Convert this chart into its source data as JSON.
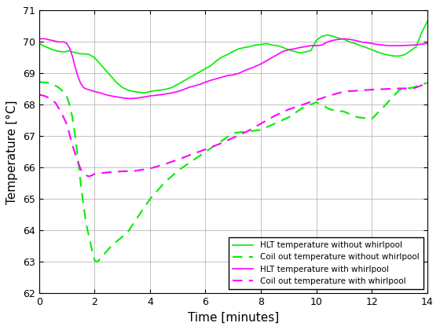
{
  "title": "",
  "xlabel": "Time [minutes]",
  "ylabel": "Temperature [°C]",
  "xlim": [
    0,
    14
  ],
  "ylim": [
    62,
    71
  ],
  "yticks": [
    62,
    63,
    64,
    65,
    66,
    67,
    68,
    69,
    70,
    71
  ],
  "xticks": [
    0,
    2,
    4,
    6,
    8,
    10,
    12,
    14
  ],
  "legend": [
    "HLT temperature without whirlpool",
    "Coil out temperature without whirlpool",
    "HLT temperature with whirlpool",
    "Coil out temperature with whirlpool"
  ],
  "colors": {
    "green": "#00ee00",
    "magenta": "#ff00ff"
  },
  "background": "#ffffff",
  "hlt_no_whirl_x": [
    0,
    0.15,
    0.3,
    0.5,
    0.7,
    0.9,
    1.0,
    1.1,
    1.2,
    1.35,
    1.5,
    1.65,
    1.8,
    2.0,
    2.2,
    2.4,
    2.6,
    2.8,
    3.0,
    3.2,
    3.4,
    3.6,
    3.8,
    4.0,
    4.2,
    4.4,
    4.6,
    4.8,
    5.0,
    5.2,
    5.4,
    5.6,
    5.8,
    6.0,
    6.2,
    6.4,
    6.6,
    6.8,
    7.0,
    7.2,
    7.4,
    7.6,
    7.8,
    8.0,
    8.2,
    8.4,
    8.6,
    8.8,
    9.0,
    9.2,
    9.4,
    9.6,
    9.8,
    10.0,
    10.2,
    10.4,
    10.6,
    10.8,
    11.0,
    11.2,
    11.4,
    11.6,
    11.8,
    12.0,
    12.2,
    12.4,
    12.6,
    12.8,
    13.0,
    13.2,
    13.4,
    13.6,
    13.8,
    14.0
  ],
  "hlt_no_whirl_y": [
    69.95,
    69.88,
    69.82,
    69.75,
    69.7,
    69.68,
    69.7,
    69.72,
    69.68,
    69.65,
    69.62,
    69.62,
    69.6,
    69.5,
    69.3,
    69.1,
    68.9,
    68.7,
    68.55,
    68.47,
    68.42,
    68.4,
    68.38,
    68.42,
    68.45,
    68.47,
    68.5,
    68.55,
    68.65,
    68.75,
    68.85,
    68.95,
    69.05,
    69.15,
    69.25,
    69.4,
    69.52,
    69.6,
    69.7,
    69.78,
    69.82,
    69.85,
    69.9,
    69.92,
    69.95,
    69.9,
    69.88,
    69.82,
    69.75,
    69.7,
    69.65,
    69.68,
    69.72,
    70.05,
    70.18,
    70.22,
    70.18,
    70.12,
    70.08,
    70.0,
    69.95,
    69.88,
    69.82,
    69.75,
    69.68,
    69.62,
    69.58,
    69.55,
    69.55,
    69.6,
    69.72,
    69.85,
    70.3,
    70.65
  ],
  "coil_no_whirl_x": [
    0,
    0.1,
    0.3,
    0.5,
    0.7,
    0.9,
    1.0,
    1.1,
    1.2,
    1.3,
    1.4,
    1.5,
    1.6,
    1.7,
    1.8,
    1.9,
    2.0,
    2.1,
    2.2,
    2.4,
    2.6,
    2.8,
    3.0,
    3.2,
    3.5,
    4.0,
    4.5,
    5.0,
    5.5,
    6.0,
    6.5,
    7.0,
    7.5,
    8.0,
    8.5,
    9.0,
    9.5,
    10.0,
    10.5,
    11.0,
    11.5,
    12.0,
    12.5,
    13.0,
    13.5,
    14.0
  ],
  "coil_no_whirl_y": [
    68.72,
    68.72,
    68.7,
    68.65,
    68.55,
    68.4,
    68.25,
    68.0,
    67.6,
    67.0,
    66.3,
    65.5,
    64.8,
    64.2,
    63.8,
    63.4,
    63.05,
    63.0,
    63.1,
    63.3,
    63.5,
    63.65,
    63.8,
    63.95,
    64.35,
    65.0,
    65.5,
    65.9,
    66.2,
    66.5,
    66.8,
    67.1,
    67.15,
    67.2,
    67.4,
    67.6,
    67.9,
    68.08,
    67.85,
    67.78,
    67.6,
    67.55,
    68.0,
    68.48,
    68.55,
    68.7
  ],
  "hlt_whirl_x": [
    0,
    0.1,
    0.2,
    0.3,
    0.4,
    0.5,
    0.6,
    0.7,
    0.8,
    0.9,
    1.0,
    1.1,
    1.2,
    1.3,
    1.4,
    1.5,
    1.6,
    1.7,
    1.8,
    1.9,
    2.0,
    2.2,
    2.4,
    2.6,
    2.8,
    3.0,
    3.2,
    3.4,
    3.6,
    3.8,
    4.0,
    4.2,
    4.4,
    4.6,
    4.8,
    5.0,
    5.2,
    5.4,
    5.6,
    5.8,
    6.0,
    6.2,
    6.4,
    6.6,
    6.8,
    7.0,
    7.2,
    7.4,
    7.6,
    7.8,
    8.0,
    8.2,
    8.4,
    8.6,
    8.8,
    9.0,
    9.2,
    9.4,
    9.6,
    9.8,
    10.0,
    10.2,
    10.4,
    10.6,
    10.8,
    11.0,
    11.2,
    11.4,
    11.6,
    11.8,
    12.0,
    12.2,
    12.4,
    12.6,
    12.8,
    13.0,
    13.5,
    14.0
  ],
  "hlt_whirl_y": [
    70.1,
    70.1,
    70.1,
    70.08,
    70.06,
    70.04,
    70.02,
    70.0,
    70.0,
    70.0,
    69.95,
    69.8,
    69.55,
    69.2,
    68.9,
    68.68,
    68.55,
    68.5,
    68.48,
    68.45,
    68.42,
    68.38,
    68.32,
    68.28,
    68.25,
    68.22,
    68.2,
    68.2,
    68.22,
    68.25,
    68.28,
    68.3,
    68.32,
    68.35,
    68.38,
    68.42,
    68.48,
    68.55,
    68.6,
    68.65,
    68.72,
    68.78,
    68.83,
    68.88,
    68.93,
    68.95,
    69.0,
    69.08,
    69.15,
    69.22,
    69.3,
    69.4,
    69.5,
    69.6,
    69.7,
    69.75,
    69.78,
    69.82,
    69.85,
    69.88,
    69.88,
    69.9,
    70.0,
    70.05,
    70.08,
    70.1,
    70.08,
    70.05,
    70.0,
    69.98,
    69.95,
    69.92,
    69.9,
    69.88,
    69.88,
    69.88,
    69.9,
    69.95
  ],
  "coil_whirl_x": [
    0,
    0.2,
    0.4,
    0.6,
    0.8,
    1.0,
    1.1,
    1.2,
    1.3,
    1.4,
    1.5,
    1.6,
    1.7,
    1.8,
    1.9,
    2.0,
    2.2,
    2.5,
    3.0,
    3.5,
    4.0,
    4.5,
    5.0,
    5.5,
    6.0,
    6.5,
    7.0,
    7.5,
    8.0,
    8.5,
    9.0,
    9.5,
    10.0,
    10.5,
    11.0,
    11.5,
    12.0,
    12.5,
    13.0,
    13.5,
    14.0
  ],
  "coil_whirl_y": [
    68.32,
    68.28,
    68.2,
    68.05,
    67.75,
    67.38,
    67.05,
    66.72,
    66.45,
    66.18,
    65.95,
    65.82,
    65.75,
    65.72,
    65.75,
    65.8,
    65.82,
    65.85,
    65.88,
    65.9,
    65.97,
    66.1,
    66.25,
    66.42,
    66.58,
    66.75,
    66.95,
    67.15,
    67.4,
    67.65,
    67.85,
    68.0,
    68.15,
    68.3,
    68.42,
    68.45,
    68.48,
    68.5,
    68.52,
    68.52,
    68.68
  ]
}
